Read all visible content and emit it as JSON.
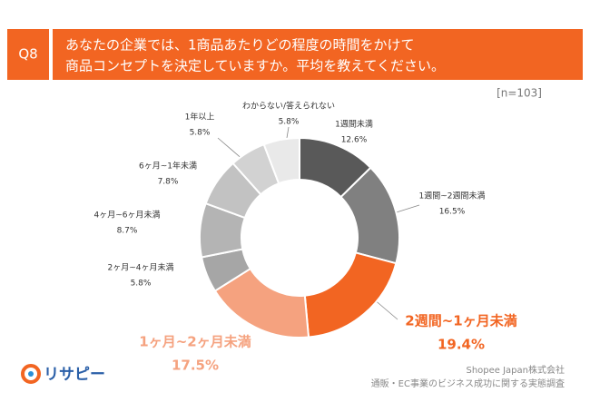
{
  "header": {
    "question": "Q8",
    "title_lines": [
      "あなたの企業では、1商品あたりどの程度の時間をかけて",
      "商品コンセプトを決定していますか。平均を教えてください。"
    ]
  },
  "note": "[n=103]",
  "chart_data": {
    "type": "donut",
    "categories": [
      "1週間未満",
      "1週間~2週間未満",
      "2週間~1ヶ月未満",
      "1ヶ月~2ヶ月未満",
      "2ヶ月~4ヶ月未満",
      "4ヶ月~6ヶ月未満",
      "6ヶ月~1年未満",
      "1年以上",
      "わからない/答えられない"
    ],
    "values": [
      12.6,
      16.5,
      19.4,
      17.5,
      5.8,
      8.7,
      7.8,
      5.8,
      5.8
    ],
    "value_labels": [
      "12.6%",
      "16.5%",
      "19.4%",
      "17.5%",
      "5.8%",
      "8.7%",
      "7.8%",
      "5.8%",
      "5.8%"
    ],
    "colors": [
      "#595959",
      "#808080",
      "#f26522",
      "#f5a27f",
      "#a6a6a6",
      "#b4b4b4",
      "#c2c2c2",
      "#d2d2d2",
      "#e9e9e9"
    ]
  },
  "footer": {
    "logo": "リサピー",
    "company": "Shopee Japan株式会社",
    "survey": "通販・EC事業のビジネス成功に関する実態調査"
  }
}
